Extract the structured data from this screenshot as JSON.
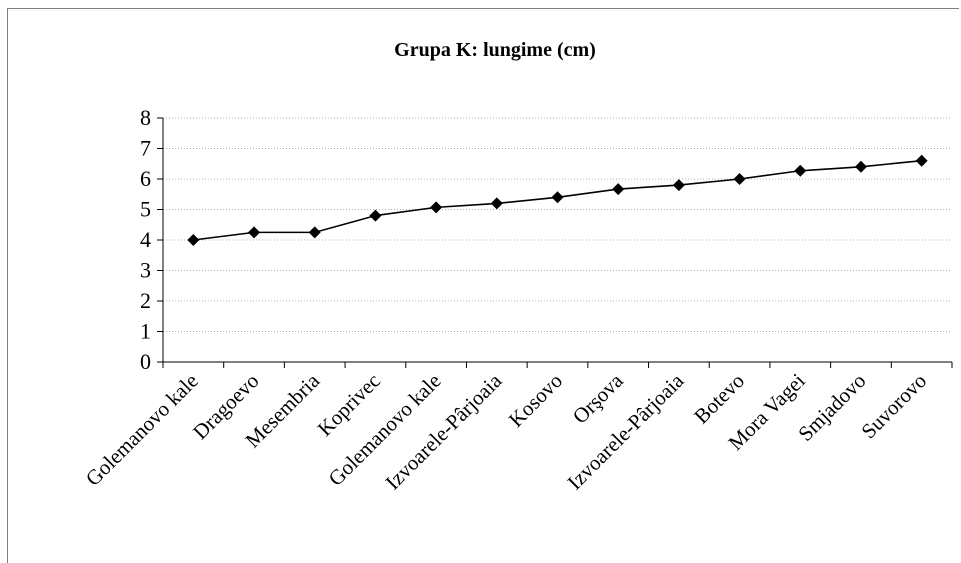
{
  "chart_data": {
    "type": "line",
    "title": "Grupa K: lungime (cm)",
    "xlabel": "",
    "ylabel": "",
    "ylim": [
      0,
      8
    ],
    "yticks": [
      "0",
      "1",
      "2",
      "3",
      "4",
      "5",
      "6",
      "7",
      "8"
    ],
    "grid": "horizontal dotted",
    "legend": "none",
    "categories": [
      "Golemanovo kale",
      "Dragoevo",
      "Mesembria",
      "Koprivec",
      "Golemanovo kale",
      "Izvoarele-Pârjoaia",
      "Kosovo",
      "Orşova",
      "Izvoarele-Pârjoaia",
      "Botevo",
      "Mora Vagei",
      "Smjadovo",
      "Suvorovo"
    ],
    "series": [
      {
        "values": [
          4.0,
          4.25,
          4.25,
          4.8,
          5.07,
          5.2,
          5.4,
          5.67,
          5.8,
          6.0,
          6.27,
          6.4,
          6.6
        ],
        "color": "#000000",
        "marker": "diamond"
      }
    ]
  }
}
